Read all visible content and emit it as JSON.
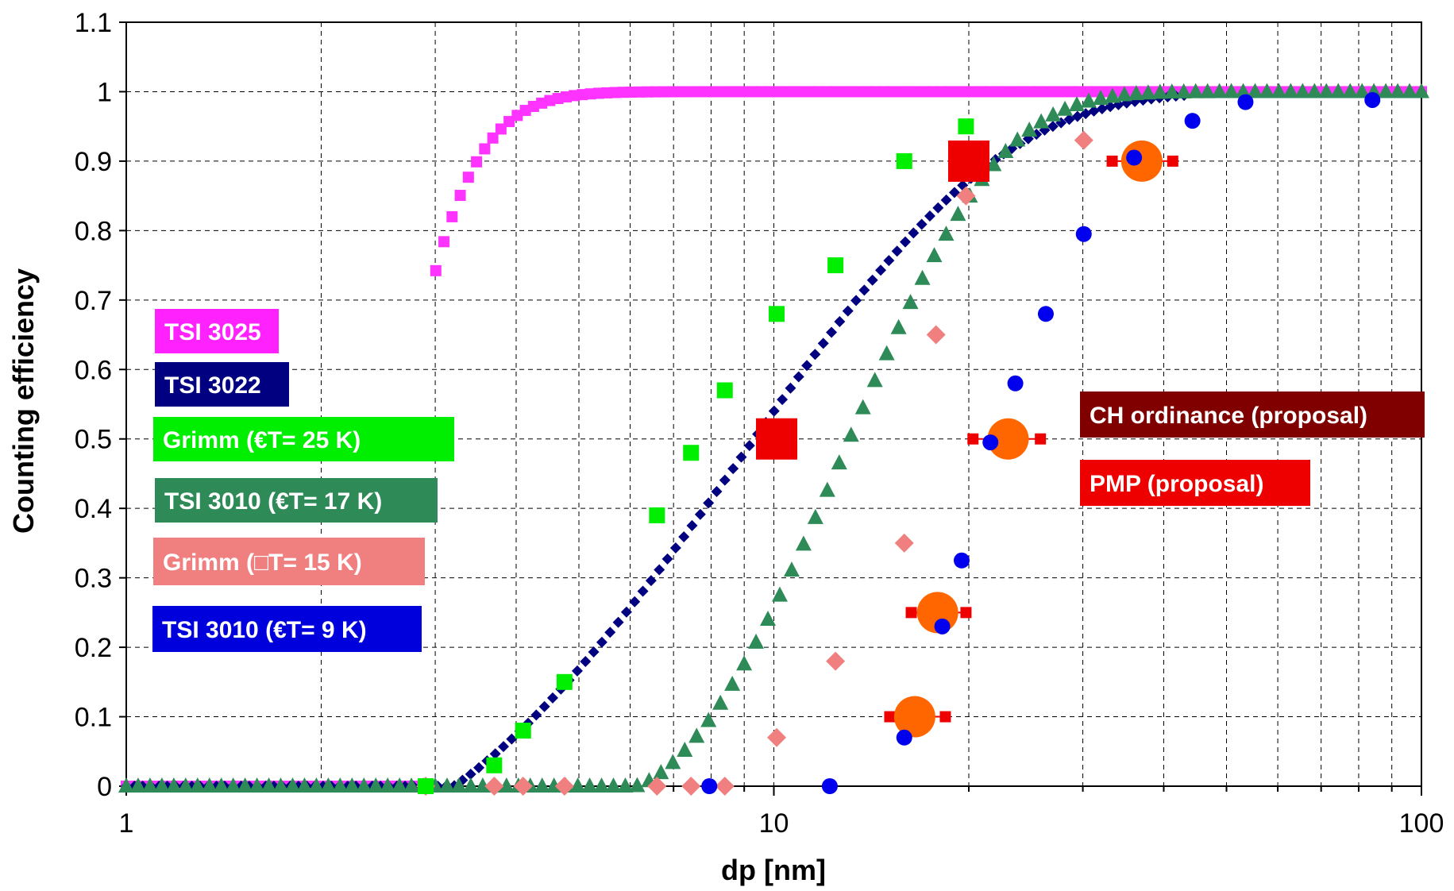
{
  "chart_data": {
    "type": "scatter",
    "xscale": "log",
    "xlim": [
      1,
      100
    ],
    "ylim": [
      0,
      1.1
    ],
    "xlabel": "dp [nm]",
    "ylabel": "Counting efficiency",
    "grid": true,
    "x_ticks": [
      "1",
      "10",
      "100"
    ],
    "y_ticks": [
      "0",
      "0.1",
      "0.2",
      "0.3",
      "0.4",
      "0.5",
      "0.6",
      "0.7",
      "0.8",
      "0.9",
      "1",
      "1.1"
    ],
    "series": [
      {
        "name": "TSI 3025",
        "marker": "square-small",
        "color": "#ff33ff",
        "curve": {
          "type": "sigmoid",
          "x_from": 1,
          "x_to": 100,
          "xmin": 2.93,
          "tau": 0.5,
          "start": 0.7
        },
        "points_count": 160
      },
      {
        "name": "TSI 3022",
        "marker": "diamond-small",
        "color": "#000080",
        "curve": {
          "type": "cutoff",
          "x_from": 1,
          "x_to": 43,
          "x0": 3.2,
          "d": 1.12
        },
        "points_count": 130
      },
      {
        "name": "Grimm (€T= 25  K)",
        "marker": "square",
        "color": "#00ee00",
        "points": [
          [
            2.9,
            0
          ],
          [
            3.7,
            0.03
          ],
          [
            4.1,
            0.08
          ],
          [
            4.75,
            0.15
          ],
          [
            6.6,
            0.39
          ],
          [
            7.45,
            0.48
          ],
          [
            8.4,
            0.57
          ],
          [
            10.1,
            0.68
          ],
          [
            12.45,
            0.75
          ],
          [
            15.9,
            0.9
          ],
          [
            19.8,
            0.95
          ]
        ]
      },
      {
        "name": "TSI 3010 (€T= 17 K)",
        "marker": "triangle",
        "color": "#2e8b57",
        "curve": {
          "type": "cutoff",
          "x_from": 1,
          "x_to": 100,
          "x0": 6.1,
          "d": 1.0
        },
        "points_count": 110
      },
      {
        "name": "Grimm (□T= 15  K)",
        "marker": "diamond",
        "color": "#f08080",
        "points": [
          [
            2.9,
            0
          ],
          [
            3.7,
            0
          ],
          [
            4.1,
            0
          ],
          [
            4.75,
            0
          ],
          [
            6.6,
            0
          ],
          [
            7.45,
            0
          ],
          [
            8.4,
            0
          ],
          [
            10.1,
            0.07
          ],
          [
            12.45,
            0.18
          ],
          [
            15.9,
            0.35
          ],
          [
            17.8,
            0.65
          ],
          [
            19.8,
            0.85
          ],
          [
            30.1,
            0.93
          ]
        ]
      },
      {
        "name": "TSI 3010 (€T= 9 K)",
        "marker": "circle",
        "color": "#0000ee",
        "points": [
          [
            7.95,
            0
          ],
          [
            12.2,
            0
          ],
          [
            15.9,
            0.07
          ],
          [
            18.2,
            0.23
          ],
          [
            19.5,
            0.325
          ],
          [
            21.6,
            0.495
          ],
          [
            23.6,
            0.58
          ],
          [
            26.3,
            0.68
          ],
          [
            30.1,
            0.795
          ],
          [
            36.0,
            0.905
          ],
          [
            44.3,
            0.958
          ],
          [
            53.5,
            0.985
          ],
          [
            84.0,
            0.988
          ]
        ]
      },
      {
        "name": "CH ordinance (proposal)",
        "marker": "circle-large-with-bar",
        "color": "#ff6600",
        "bar_color": "#ee0000",
        "points": [
          [
            16.5,
            0.1
          ],
          [
            17.9,
            0.25
          ],
          [
            23.0,
            0.5
          ],
          [
            37.0,
            0.9
          ]
        ],
        "bar_x_ranges": [
          [
            15.1,
            18.4
          ],
          [
            16.3,
            19.8
          ],
          [
            20.3,
            25.8
          ],
          [
            33.3,
            41.3
          ]
        ]
      },
      {
        "name": "PMP (proposal)",
        "marker": "square-large",
        "color": "#ee0000",
        "points": [
          [
            10.1,
            0.5
          ],
          [
            20.0,
            0.9
          ]
        ]
      }
    ]
  },
  "legend": [
    {
      "label": "TSI 3025",
      "color": "#ff22ff"
    },
    {
      "label": "TSI 3022",
      "color": "#000080"
    },
    {
      "label": "Grimm (€T= 25  K)",
      "color": "#00ee00"
    },
    {
      "label": "TSI 3010 (€T= 17 K)",
      "color": "#2e8b57"
    },
    {
      "label": "Grimm (□T= 15  K)",
      "color": "#f08080"
    },
    {
      "label": "TSI 3010 (€T= 9 K)",
      "color": "#0000dd"
    }
  ],
  "proposal_labels": [
    {
      "label": "CH ordinance (proposal)",
      "color": "#800000"
    },
    {
      "label": "PMP (proposal)",
      "color": "#ee0000"
    }
  ]
}
